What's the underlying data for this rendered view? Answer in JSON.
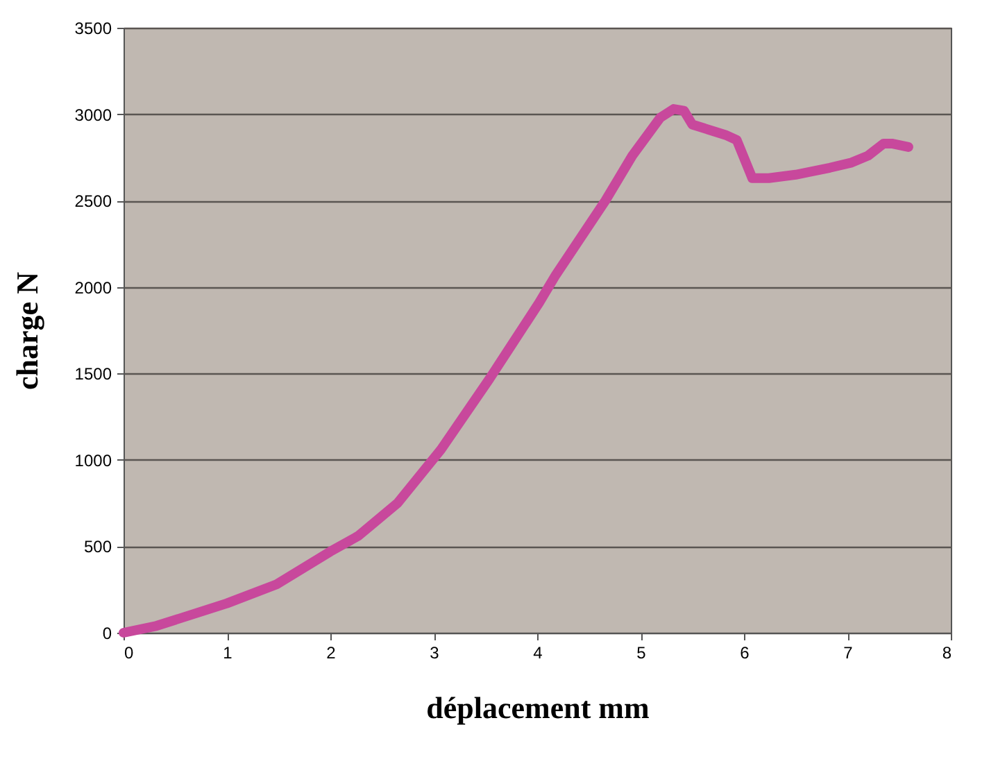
{
  "chart_data": {
    "type": "line",
    "xlabel": "déplacement mm",
    "ylabel": "charge N",
    "x": [
      0,
      0.32,
      1.0,
      1.48,
      2.0,
      2.27,
      2.65,
      3.07,
      3.54,
      4.02,
      4.18,
      4.66,
      4.92,
      5.19,
      5.32,
      5.42,
      5.5,
      5.82,
      5.93,
      6.08,
      6.24,
      6.5,
      6.83,
      7.04,
      7.2,
      7.35,
      7.43,
      7.59
    ],
    "series": [
      {
        "color": "#c8489c",
        "values": [
          0,
          40,
          170,
          280,
          470,
          560,
          750,
          1060,
          1470,
          1910,
          2070,
          2500,
          2760,
          2980,
          3030,
          3020,
          2940,
          2880,
          2850,
          2630,
          2630,
          2650,
          2690,
          2720,
          2760,
          2830,
          2830,
          2810
        ]
      }
    ],
    "xlim": [
      0,
      8
    ],
    "xticks": [
      0,
      1,
      2,
      3,
      4,
      5,
      6,
      7,
      8
    ],
    "ylim": [
      0,
      3500
    ],
    "yticks": [
      0,
      500,
      1000,
      1500,
      2000,
      2500,
      3000,
      3500
    ],
    "grid": "y",
    "line_style": "solid"
  }
}
